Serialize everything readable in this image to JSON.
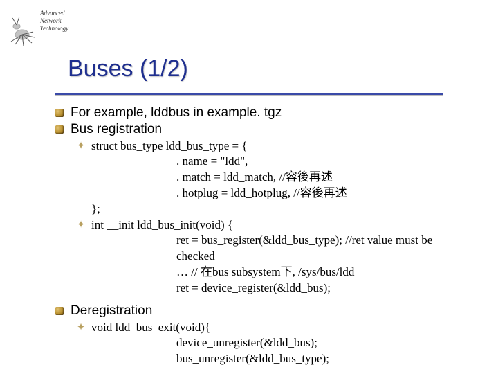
{
  "logo": {
    "line1": "Advanced",
    "line2": "Network",
    "line3": "Technology"
  },
  "title": "Buses (1/2)",
  "items": [
    {
      "level": 1,
      "text": "For example, lddbus in example. tgz"
    },
    {
      "level": 1,
      "text": "Bus registration"
    },
    {
      "level": 2,
      "text": "struct bus_type ldd_bus_type = {"
    },
    {
      "level": "code",
      "text": ". name = \"ldd\","
    },
    {
      "level": "code",
      "text": ". match = ldd_match,      //容後再述"
    },
    {
      "level": "code",
      "text": ". hotplug = ldd_hotplug, //容後再述"
    },
    {
      "level": "close",
      "text": "};"
    },
    {
      "level": 2,
      "text": "int __init ldd_bus_init(void) {"
    },
    {
      "level": "code",
      "text": "ret = bus_register(&ldd_bus_type);  //ret value must be checked"
    },
    {
      "level": "code",
      "text": "…   // 在bus subsystem下, /sys/bus/ldd"
    },
    {
      "level": "code",
      "text": "ret = device_register(&ldd_bus);"
    },
    {
      "level": 1,
      "text": "Deregistration"
    },
    {
      "level": 2,
      "text": "void ldd_bus_exit(void){"
    },
    {
      "level": "code",
      "text": "device_unregister(&ldd_bus);"
    },
    {
      "level": "code",
      "text": "bus_unregister(&ldd_bus_type);"
    }
  ],
  "colors": {
    "title": "#1f2f8f",
    "divider": "#3a4aa8",
    "bullet_gold_light": "#e0c070",
    "bullet_gold_dark": "#6b4a10"
  }
}
